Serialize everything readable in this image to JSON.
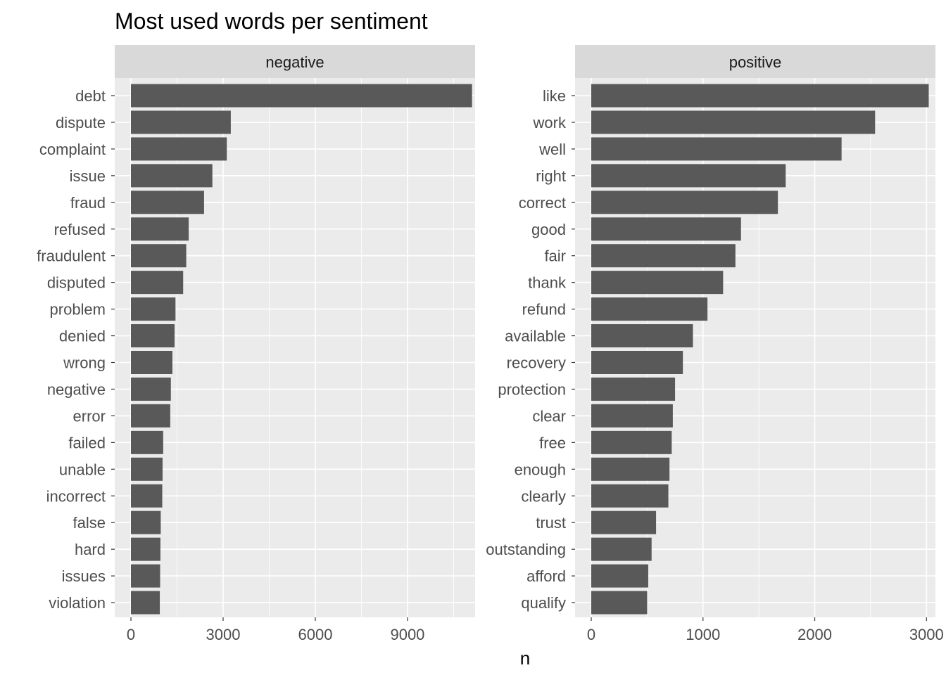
{
  "chart_data": {
    "type": "bar",
    "orientation": "horizontal",
    "title": "Most used words per sentiment",
    "xlabel": "n",
    "ylabel": "",
    "grid": true,
    "facets": [
      {
        "strip_label": "negative",
        "xlim": [
          0,
          11200
        ],
        "xticks": [
          0,
          3000,
          6000,
          9000
        ],
        "tick_labels": [
          "0",
          "3000",
          "6000",
          "9000"
        ],
        "categories": [
          "debt",
          "dispute",
          "complaint",
          "issue",
          "fraud",
          "refused",
          "fraudulent",
          "disputed",
          "problem",
          "denied",
          "wrong",
          "negative",
          "error",
          "failed",
          "unable",
          "incorrect",
          "false",
          "hard",
          "issues",
          "violation"
        ],
        "values": [
          11100,
          3250,
          3120,
          2650,
          2380,
          1880,
          1800,
          1700,
          1450,
          1420,
          1350,
          1300,
          1280,
          1050,
          1030,
          1020,
          970,
          960,
          950,
          940
        ]
      },
      {
        "strip_label": "positive",
        "xlim": [
          0,
          3080
        ],
        "xticks": [
          0,
          1000,
          2000,
          3000
        ],
        "tick_labels": [
          "0",
          "1000",
          "2000",
          "3000"
        ],
        "categories": [
          "like",
          "work",
          "well",
          "right",
          "correct",
          "good",
          "fair",
          "thank",
          "refund",
          "available",
          "recovery",
          "protection",
          "clear",
          "free",
          "enough",
          "clearly",
          "trust",
          "outstanding",
          "afford",
          "qualify"
        ],
        "values": [
          3020,
          2540,
          2240,
          1740,
          1670,
          1340,
          1290,
          1180,
          1040,
          910,
          820,
          750,
          730,
          720,
          700,
          690,
          580,
          540,
          510,
          500
        ]
      }
    ]
  }
}
